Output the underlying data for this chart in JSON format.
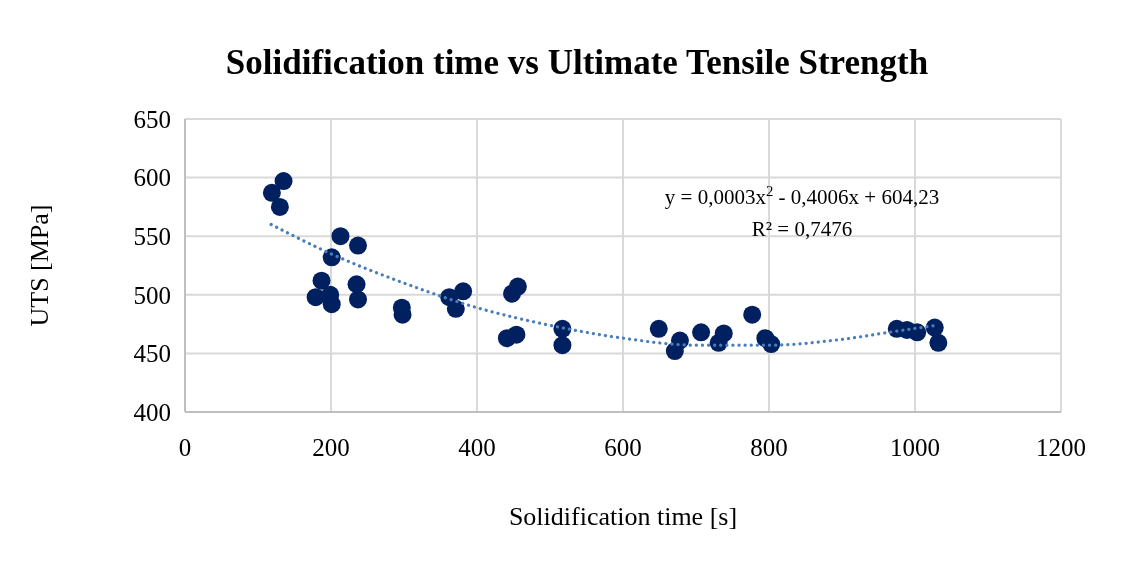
{
  "chart_data": {
    "type": "scatter",
    "title": "Solidification time vs Ultimate Tensile Strength",
    "xlabel": "Solidification time [s]",
    "ylabel": "UTS [MPa]",
    "xlim": [
      0,
      1200
    ],
    "xticks": [
      0,
      200,
      400,
      600,
      800,
      1000,
      1200
    ],
    "ylim": [
      400,
      650
    ],
    "yticks": [
      400,
      450,
      500,
      550,
      600,
      650
    ],
    "grid": true,
    "annotations": [
      "y = 0,0003x$^{2}$ - 0,4006x + 604,23",
      "R² = 0,7476"
    ],
    "series": [
      {
        "color": "#002060",
        "marker": "circle",
        "x": [
          135,
          119,
          130,
          213,
          237,
          201,
          187,
          179,
          199,
          201,
          235,
          237,
          297,
          298,
          362,
          381,
          371,
          448,
          456,
          441,
          454,
          517,
          517,
          649,
          678,
          671,
          707,
          738,
          731,
          777,
          795,
          803,
          975,
          989,
          1003,
          1027,
          1032
        ],
        "values": [
          597,
          587,
          575,
          550,
          542,
          532,
          512,
          498,
          500,
          492,
          509,
          496,
          489,
          483,
          498,
          503,
          488,
          501,
          507,
          463,
          466,
          471,
          457,
          471,
          461,
          452,
          468,
          467,
          459,
          483,
          463,
          458,
          471,
          470,
          468,
          472,
          459
        ]
      },
      {
        "type": "line",
        "color": "#4a7ebb",
        "marker": "none",
        "line_style": "dotted",
        "x": [
          118,
          200,
          300,
          400,
          500,
          600,
          700,
          800,
          900,
          975,
          1030
        ],
        "values": [
          560,
          535,
          510,
          489,
          474,
          463,
          457,
          457,
          462,
          469,
          474
        ]
      }
    ]
  }
}
